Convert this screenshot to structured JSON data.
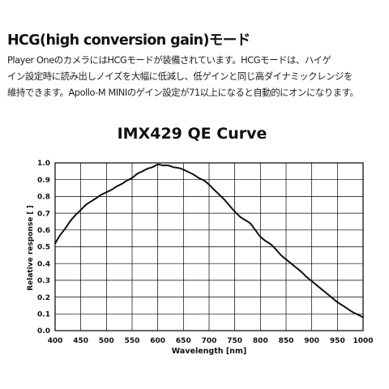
{
  "heading": "HCG(high conversion gain)モード",
  "body_lines": [
    "Player OneのカメラにはHCGモードが装備されています。HCGモードは、ハイゲ",
    "イン設定時に読み出しノイズを大幅に低減し、低ゲインと同じ高ダイナミックレンジを",
    "維持できます。Apollo-M MINIのゲイン設定が71以上になると自動的にオンになります。"
  ],
  "colors": {
    "curve": "#111111",
    "grid": "#000000",
    "watermark": "#bfbfbf"
  },
  "chart_data": {
    "type": "line",
    "title": "IMX429 QE Curve",
    "xlabel": "Wavelength [nm]",
    "ylabel": "Relative response [ ]",
    "xlim": [
      400,
      1000
    ],
    "ylim": [
      0,
      1.0
    ],
    "x_ticks": [
      400,
      450,
      500,
      550,
      600,
      650,
      700,
      750,
      800,
      850,
      900,
      950,
      1000
    ],
    "y_ticks": [
      0.0,
      0.1,
      0.2,
      0.3,
      0.4,
      0.5,
      0.6,
      0.7,
      0.8,
      0.9,
      1.0
    ],
    "x_tick_labels": [
      "400",
      "450",
      "500",
      "550",
      "600",
      "650",
      "700",
      "750",
      "800",
      "850",
      "900",
      "950",
      "1000"
    ],
    "y_tick_labels": [
      "0.0",
      "0.1",
      "0.2",
      "0.3",
      "0.4",
      "0.5",
      "0.6",
      "0.7",
      "0.8",
      "0.9",
      "1.0"
    ],
    "grid": true,
    "series": [
      {
        "x": [
          400,
          410,
          420,
          430,
          440,
          450,
          460,
          470,
          480,
          490,
          500,
          510,
          520,
          530,
          540,
          550,
          560,
          570,
          580,
          590,
          600,
          610,
          620,
          630,
          640,
          650,
          660,
          670,
          680,
          690,
          700,
          710,
          720,
          730,
          740,
          750,
          760,
          770,
          780,
          790,
          800,
          810,
          820,
          830,
          840,
          850,
          860,
          870,
          880,
          890,
          900,
          910,
          920,
          930,
          940,
          950,
          960,
          970,
          980,
          990,
          1000
        ],
        "y": [
          0.52,
          0.57,
          0.61,
          0.655,
          0.69,
          0.72,
          0.75,
          0.77,
          0.79,
          0.81,
          0.825,
          0.84,
          0.86,
          0.875,
          0.895,
          0.91,
          0.935,
          0.95,
          0.965,
          0.975,
          0.99,
          0.985,
          0.985,
          0.975,
          0.97,
          0.96,
          0.945,
          0.93,
          0.91,
          0.895,
          0.87,
          0.84,
          0.81,
          0.78,
          0.745,
          0.71,
          0.68,
          0.66,
          0.64,
          0.6,
          0.56,
          0.535,
          0.515,
          0.485,
          0.45,
          0.425,
          0.4,
          0.375,
          0.35,
          0.32,
          0.295,
          0.27,
          0.245,
          0.22,
          0.195,
          0.17,
          0.15,
          0.13,
          0.11,
          0.095,
          0.08
        ]
      }
    ]
  }
}
